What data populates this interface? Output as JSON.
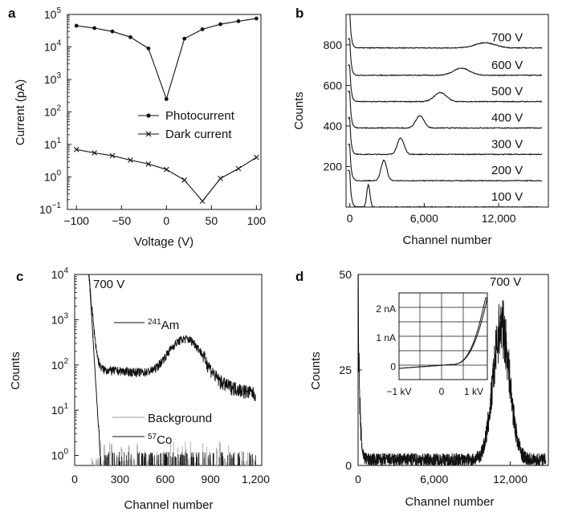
{
  "panels": {
    "a": {
      "label": "a",
      "type": "line",
      "xlabel": "Voltage (V)",
      "ylabel": "Current (pA)",
      "yscale": "log",
      "xlim": [
        -110,
        105
      ],
      "ylim_exp": [
        -1,
        5
      ],
      "xticks": [
        "−100",
        "−50",
        "0",
        "50",
        "100"
      ],
      "xtick_values": [
        -100,
        -50,
        0,
        50,
        100
      ],
      "yticks_base": "10",
      "ytick_exps": [
        "−1",
        "0",
        "1",
        "2",
        "3",
        "4",
        "5"
      ],
      "series": [
        {
          "name": "Photocurrent",
          "marker": "dot",
          "x": [
            -100,
            -80,
            -60,
            -40,
            -20,
            0,
            20,
            40,
            60,
            80,
            100
          ],
          "y": [
            45000,
            38000,
            30000,
            20000,
            9000,
            250,
            18000,
            35000,
            50000,
            62000,
            75000
          ]
        },
        {
          "name": "Dark current",
          "marker": "x",
          "x": [
            -100,
            -80,
            -60,
            -40,
            -20,
            0,
            20,
            40,
            60,
            80,
            100
          ],
          "y": [
            7,
            5.5,
            4.5,
            3.3,
            2.5,
            1.7,
            0.8,
            0.18,
            0.9,
            1.8,
            4
          ]
        }
      ],
      "legend": [
        "Photocurrent",
        "Dark current"
      ]
    },
    "b": {
      "label": "b",
      "type": "line",
      "xlabel": "Channel number",
      "ylabel": "Counts",
      "xlim": [
        -300,
        16000
      ],
      "ylim": [
        0,
        950
      ],
      "xticks": [
        "0",
        "6,000",
        "12,000"
      ],
      "xtick_values": [
        0,
        6000,
        12000
      ],
      "yticks": [
        "200",
        "400",
        "600",
        "800"
      ],
      "ytick_values": [
        200,
        400,
        600,
        800
      ],
      "series": [
        {
          "name": "100 V",
          "offset": 0,
          "peak_channel": 1500,
          "peak_height": 110,
          "peak_width": 130
        },
        {
          "name": "200 V",
          "offset": 130,
          "peak_channel": 2750,
          "peak_height": 100,
          "peak_width": 230
        },
        {
          "name": "300 V",
          "offset": 260,
          "peak_channel": 4100,
          "peak_height": 80,
          "peak_width": 270
        },
        {
          "name": "400 V",
          "offset": 390,
          "peak_channel": 5650,
          "peak_height": 60,
          "peak_width": 330
        },
        {
          "name": "500 V",
          "offset": 520,
          "peak_channel": 7300,
          "peak_height": 45,
          "peak_width": 480
        },
        {
          "name": "600 V",
          "offset": 650,
          "peak_channel": 9000,
          "peak_height": 35,
          "peak_width": 650
        },
        {
          "name": "700 V",
          "offset": 785,
          "peak_channel": 10900,
          "peak_height": 25,
          "peak_width": 800
        }
      ]
    },
    "c": {
      "label": "c",
      "type": "line",
      "annotation": "700 V",
      "xlabel": "Channel number",
      "ylabel": "Counts",
      "yscale": "log",
      "xlim": [
        0,
        1240
      ],
      "ylim_exp": [
        -0.22,
        4
      ],
      "xticks": [
        "0",
        "300",
        "600",
        "900",
        "1,200"
      ],
      "xtick_values": [
        0,
        300,
        600,
        900,
        1200
      ],
      "yticks_base": "10",
      "ytick_exps": [
        "0",
        "1",
        "2",
        "3",
        "4"
      ],
      "series": [
        {
          "name": "241Am",
          "label_sup": "241",
          "label_main": "Am",
          "baseline": 80,
          "peak_channel": 735,
          "peak_height": 400
        },
        {
          "name": "Background",
          "color": "#9a9a9a"
        },
        {
          "name": "57Co",
          "label_sup": "57",
          "label_main": "Co"
        }
      ]
    },
    "d": {
      "label": "d",
      "type": "line",
      "annotation": "700 V",
      "xlabel": "Channel number",
      "ylabel": "Counts",
      "xlim": [
        0,
        15000
      ],
      "ylim": [
        0,
        50
      ],
      "xticks": [
        "0",
        "6,000",
        "12,000"
      ],
      "xtick_values": [
        0,
        6000,
        12000
      ],
      "yticks": [
        "0",
        "25",
        "50"
      ],
      "ytick_values": [
        0,
        25,
        50
      ],
      "peak_channel": 11300,
      "peak_height": 35,
      "inset": {
        "type": "line",
        "xticks": [
          "−1 kV",
          "0",
          "1 kV"
        ],
        "yticks": [
          "2 nA",
          "1 nA",
          "0"
        ]
      }
    }
  }
}
